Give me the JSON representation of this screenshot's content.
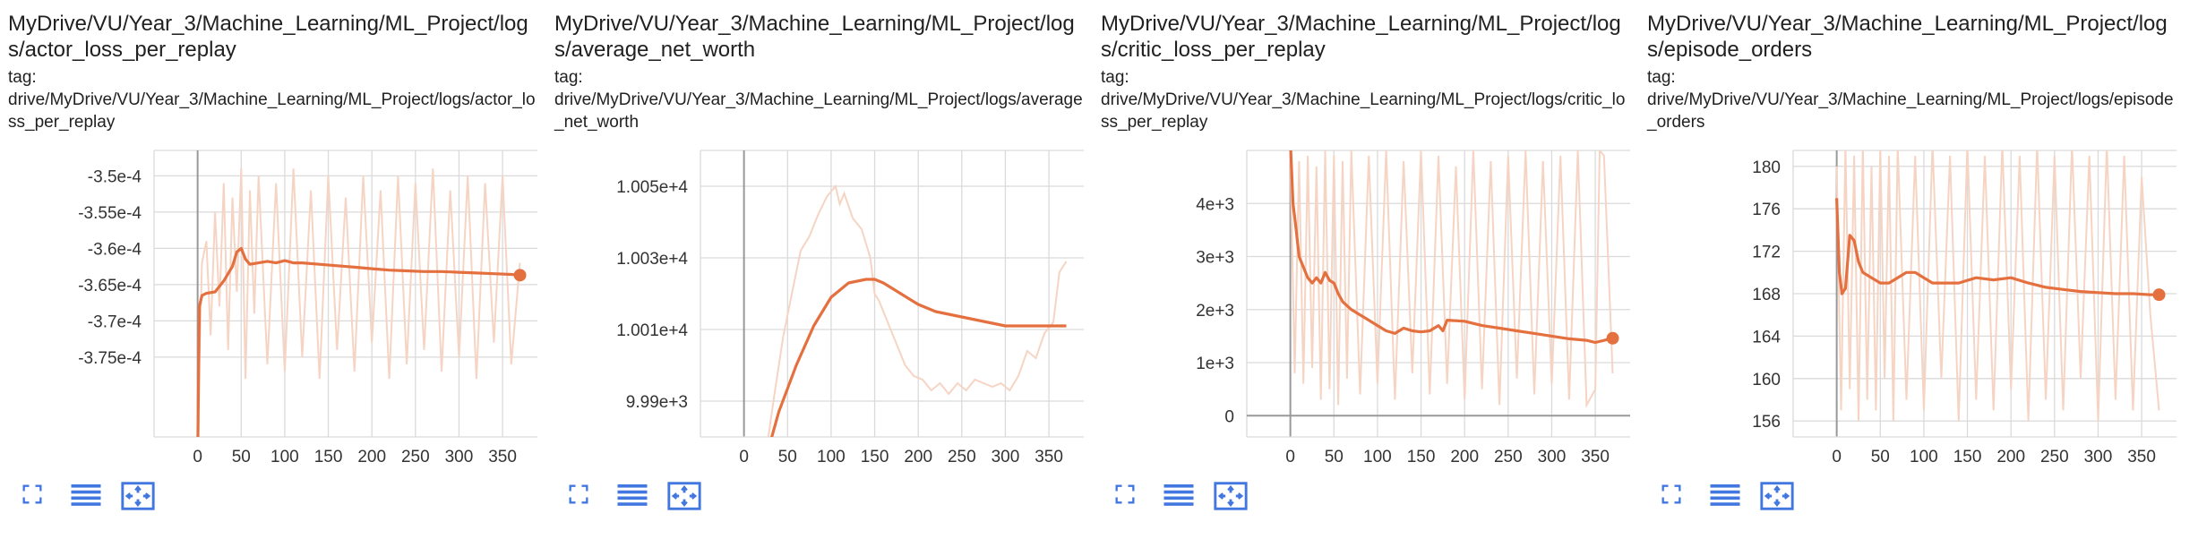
{
  "colors": {
    "line": "#e5703f",
    "raw_line": "#f6d4c3",
    "grid": "#dadada",
    "axis": "#999999",
    "icon": "#4277e0"
  },
  "toolbar_icons": [
    "fullscreen-icon",
    "data-table-icon",
    "fit-domain-icon"
  ],
  "cards": [
    {
      "title": "MyDrive/VU/Year_3/Machine_Learning/ML_Project/logs/actor_loss_per_replay",
      "tag_label": "tag:",
      "tag_value": "drive/MyDrive/VU/Year_3/Machine_Learning/ML_Project/logs/actor_loss_per_replay"
    },
    {
      "title": "MyDrive/VU/Year_3/Machine_Learning/ML_Project/logs/average_net_worth",
      "tag_label": "tag:",
      "tag_value": "drive/MyDrive/VU/Year_3/Machine_Learning/ML_Project/logs/average_net_worth"
    },
    {
      "title": "MyDrive/VU/Year_3/Machine_Learning/ML_Project/logs/critic_loss_per_replay",
      "tag_label": "tag:",
      "tag_value": "drive/MyDrive/VU/Year_3/Machine_Learning/ML_Project/logs/critic_loss_per_replay"
    },
    {
      "title": "MyDrive/VU/Year_3/Machine_Learning/ML_Project/logs/episode_orders",
      "tag_label": "tag:",
      "tag_value": "drive/MyDrive/VU/Year_3/Machine_Learning/ML_Project/logs/episode_orders"
    }
  ],
  "chart_data": [
    {
      "type": "line",
      "title": "MyDrive/VU/Year_3/Machine_Learning/ML_Project/logs/actor_loss_per_replay",
      "xlim": [
        -50,
        390
      ],
      "ylim": [
        -0.000386,
        -0.0003465
      ],
      "x_ticks": [
        0,
        50,
        100,
        150,
        200,
        250,
        300,
        350
      ],
      "y_ticks": [
        -0.00035,
        -0.000355,
        -0.00036,
        -0.000365,
        -0.00037,
        -0.000375
      ],
      "y_tick_labels": [
        "-3.5e-4",
        "-3.55e-4",
        "-3.6e-4",
        "-3.65e-4",
        "-3.7e-4",
        "-3.75e-4"
      ],
      "grid": true,
      "smoothed": {
        "x": [
          0,
          2,
          5,
          10,
          20,
          30,
          40,
          45,
          50,
          55,
          60,
          70,
          80,
          90,
          100,
          110,
          120,
          140,
          160,
          180,
          200,
          220,
          240,
          260,
          280,
          300,
          320,
          340,
          360,
          370
        ],
        "y": [
          -0.00039,
          -0.000368,
          -0.0003665,
          -0.0003662,
          -0.000366,
          -0.0003645,
          -0.0003625,
          -0.0003605,
          -0.00036,
          -0.0003615,
          -0.0003622,
          -0.000362,
          -0.0003618,
          -0.000362,
          -0.0003617,
          -0.000362,
          -0.000362,
          -0.0003622,
          -0.0003624,
          -0.0003626,
          -0.0003628,
          -0.000363,
          -0.0003631,
          -0.0003632,
          -0.0003632,
          -0.0003633,
          -0.0003634,
          -0.0003635,
          -0.0003636,
          -0.0003637
        ]
      },
      "raw": {
        "x": [
          0,
          5,
          10,
          15,
          20,
          25,
          30,
          35,
          40,
          45,
          50,
          55,
          60,
          65,
          70,
          80,
          90,
          100,
          110,
          120,
          130,
          140,
          150,
          160,
          170,
          180,
          190,
          200,
          210,
          220,
          230,
          240,
          250,
          260,
          270,
          280,
          290,
          300,
          310,
          320,
          330,
          340,
          350,
          360,
          370
        ],
        "y": [
          -0.000385,
          -0.000362,
          -0.000359,
          -0.000372,
          -0.000355,
          -0.000368,
          -0.000351,
          -0.000374,
          -0.000353,
          -0.000366,
          -0.000349,
          -0.000378,
          -0.000352,
          -0.000369,
          -0.00035,
          -0.000376,
          -0.000351,
          -0.000377,
          -0.000349,
          -0.000375,
          -0.000352,
          -0.000378,
          -0.00035,
          -0.000374,
          -0.000353,
          -0.000377,
          -0.00035,
          -0.000373,
          -0.000352,
          -0.000378,
          -0.00035,
          -0.000376,
          -0.000351,
          -0.000374,
          -0.000349,
          -0.000377,
          -0.000352,
          -0.000375,
          -0.00035,
          -0.000378,
          -0.000351,
          -0.000373,
          -0.00035,
          -0.000376,
          -0.000362
        ]
      }
    },
    {
      "type": "line",
      "title": "MyDrive/VU/Year_3/Machine_Learning/ML_Project/logs/average_net_worth",
      "xlim": [
        -50,
        390
      ],
      "ylim": [
        9980,
        10060
      ],
      "x_ticks": [
        0,
        50,
        100,
        150,
        200,
        250,
        300,
        350
      ],
      "y_ticks": [
        10050,
        10030,
        10010,
        9990
      ],
      "y_tick_labels": [
        "1.005e+4",
        "1.003e+4",
        "1.001e+4",
        "9.99e+3"
      ],
      "grid": true,
      "smoothed": {
        "x": [
          25,
          40,
          60,
          80,
          100,
          120,
          140,
          150,
          160,
          180,
          200,
          220,
          240,
          260,
          280,
          300,
          320,
          340,
          360,
          370
        ],
        "y": [
          9974,
          9987,
          10000,
          10011,
          10019,
          10023,
          10024,
          10024,
          10023,
          10020,
          10017,
          10015,
          10014,
          10013,
          10012,
          10011,
          10011,
          10011,
          10011,
          10011
        ]
      },
      "raw": {
        "x": [
          25,
          35,
          45,
          55,
          65,
          75,
          85,
          95,
          105,
          110,
          115,
          125,
          135,
          145,
          150,
          155,
          165,
          175,
          185,
          195,
          205,
          215,
          225,
          235,
          245,
          255,
          265,
          275,
          285,
          295,
          305,
          315,
          325,
          335,
          345,
          355,
          362,
          370
        ],
        "y": [
          9975,
          9992,
          10008,
          10020,
          10032,
          10036,
          10042,
          10047,
          10050,
          10045,
          10048,
          10041,
          10038,
          10030,
          10020,
          10018,
          10012,
          10006,
          10000,
          9997,
          9996,
          9993,
          9995,
          9992,
          9995,
          9993,
          9996,
          9995,
          9994,
          9995,
          9993,
          9997,
          10004,
          10002,
          10009,
          10012,
          10026,
          10029
        ]
      }
    },
    {
      "type": "line",
      "title": "MyDrive/VU/Year_3/Machine_Learning/ML_Project/logs/critic_loss_per_replay",
      "xlim": [
        -50,
        390
      ],
      "ylim": [
        -400,
        5000
      ],
      "x_ticks": [
        0,
        50,
        100,
        150,
        200,
        250,
        300,
        350
      ],
      "y_ticks": [
        4000,
        3000,
        2000,
        1000,
        0
      ],
      "y_tick_labels": [
        "4e+3",
        "3e+3",
        "2e+3",
        "1e+3",
        "0"
      ],
      "grid": true,
      "smoothed": {
        "x": [
          0,
          3,
          6,
          10,
          15,
          20,
          25,
          30,
          35,
          40,
          45,
          50,
          55,
          60,
          70,
          80,
          90,
          100,
          110,
          120,
          130,
          140,
          150,
          160,
          170,
          175,
          180,
          200,
          220,
          240,
          260,
          280,
          300,
          320,
          340,
          350,
          370
        ],
        "y": [
          5200,
          4000,
          3600,
          3000,
          2800,
          2600,
          2500,
          2600,
          2500,
          2700,
          2550,
          2500,
          2300,
          2150,
          2000,
          1900,
          1800,
          1700,
          1600,
          1550,
          1650,
          1600,
          1580,
          1600,
          1700,
          1600,
          1800,
          1780,
          1700,
          1650,
          1600,
          1550,
          1500,
          1450,
          1420,
          1380,
          1460
        ]
      },
      "raw": {
        "x": [
          0,
          5,
          10,
          15,
          20,
          25,
          30,
          35,
          40,
          45,
          50,
          55,
          60,
          65,
          70,
          80,
          90,
          100,
          110,
          120,
          130,
          140,
          150,
          160,
          170,
          180,
          190,
          200,
          210,
          220,
          230,
          240,
          250,
          260,
          270,
          280,
          290,
          300,
          310,
          320,
          330,
          340,
          350,
          355,
          360,
          370
        ],
        "y": [
          5000,
          800,
          4800,
          600,
          4900,
          900,
          4700,
          300,
          5000,
          500,
          4900,
          200,
          4800,
          700,
          5000,
          400,
          4900,
          600,
          5000,
          300,
          4800,
          800,
          5000,
          400,
          4900,
          600,
          4700,
          300,
          5000,
          500,
          4800,
          200,
          4900,
          700,
          5000,
          400,
          4800,
          600,
          4900,
          300,
          5000,
          200,
          500,
          5000,
          4900,
          800
        ]
      }
    },
    {
      "type": "line",
      "title": "MyDrive/VU/Year_3/Machine_Learning/ML_Project/logs/episode_orders",
      "xlim": [
        -50,
        390
      ],
      "ylim": [
        154.5,
        181.5
      ],
      "x_ticks": [
        0,
        50,
        100,
        150,
        200,
        250,
        300,
        350
      ],
      "y_ticks": [
        180,
        176,
        172,
        168,
        164,
        160,
        156
      ],
      "y_tick_labels": [
        "180",
        "176",
        "172",
        "168",
        "164",
        "160",
        "156"
      ],
      "grid": true,
      "smoothed": {
        "x": [
          0,
          3,
          6,
          10,
          15,
          20,
          25,
          30,
          40,
          50,
          60,
          70,
          80,
          90,
          100,
          110,
          120,
          140,
          160,
          180,
          200,
          220,
          240,
          260,
          280,
          300,
          320,
          340,
          360,
          370
        ],
        "y": [
          177,
          170,
          168,
          168.5,
          173.5,
          173,
          171,
          170,
          169.5,
          169,
          169,
          169.5,
          170,
          170,
          169.5,
          169,
          169,
          169,
          169.5,
          169.3,
          169.5,
          169,
          168.6,
          168.4,
          168.2,
          168.1,
          168.0,
          168.0,
          167.9,
          167.9
        ]
      },
      "raw": {
        "x": [
          0,
          5,
          10,
          15,
          20,
          25,
          30,
          35,
          40,
          45,
          50,
          55,
          60,
          65,
          70,
          80,
          90,
          100,
          110,
          120,
          130,
          140,
          150,
          160,
          170,
          180,
          190,
          200,
          210,
          220,
          230,
          240,
          250,
          260,
          270,
          280,
          290,
          300,
          310,
          320,
          330,
          340,
          350,
          360,
          370
        ],
        "y": [
          180,
          157,
          182,
          159,
          181,
          156,
          182,
          158,
          180,
          157,
          182,
          160,
          181,
          156,
          182,
          158,
          181,
          157,
          182,
          160,
          181,
          156,
          182,
          158,
          181,
          157,
          182,
          159,
          181,
          156,
          182,
          158,
          181,
          157,
          182,
          160,
          181,
          156,
          182,
          158,
          181,
          157,
          179,
          166,
          157
        ]
      }
    }
  ]
}
